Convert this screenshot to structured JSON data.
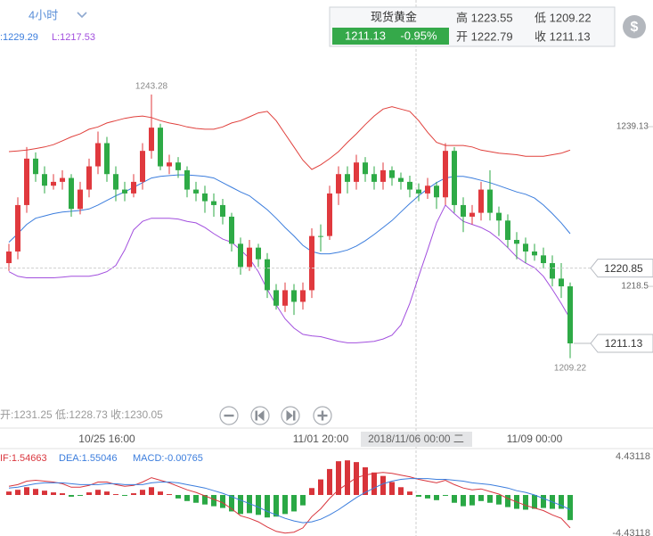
{
  "timeframe": "4小时",
  "boll_legend": [
    ":1229.29",
    "L:1217.53"
  ],
  "quote": {
    "title": "现货黄金",
    "price": "1211.13",
    "change": "-0.95%",
    "high": "高 1223.55",
    "low": "低 1209.22",
    "open": "开 1222.79",
    "close": "收 1211.13",
    "icon": "$"
  },
  "ohlc_readout": "开:1231.25 低:1228.73 收:1230.05",
  "crosshair_time": "2018/11/06 00:00 二",
  "macd_legend": [
    {
      "text": "IF:1.54663",
      "color": "#d9363e"
    },
    {
      "text": "DEA:1.55046",
      "color": "#3b7ddd"
    },
    {
      "text": "MACD:-0.00765",
      "color": "#3b7ddd"
    }
  ],
  "chart_data": [
    {
      "type": "candlestick",
      "categories": [
        null,
        null,
        null,
        null,
        null,
        null,
        null,
        null,
        null,
        null,
        null,
        "10/25 16:00",
        null,
        null,
        null,
        null,
        null,
        null,
        null,
        null,
        null,
        null,
        null,
        null,
        null,
        null,
        null,
        null,
        null,
        null,
        null,
        null,
        null,
        null,
        null,
        "11/01 20:00",
        null,
        null,
        null,
        null,
        null,
        null,
        null,
        null,
        null,
        null,
        null,
        null,
        null,
        null,
        null,
        null,
        null,
        null,
        null,
        null,
        null,
        null,
        null,
        "11/09 00:00",
        null,
        null,
        null,
        null
      ],
      "up_color": "#e0393e",
      "down_color": "#2eaa46",
      "candles": {
        "open": [
          1221.5,
          1223,
          1229,
          1235,
          1233,
          1231.5,
          1232,
          1232.5,
          1228.5,
          1231,
          1234,
          1237,
          1233,
          1231,
          1230.5,
          1232,
          1236,
          1239,
          1234,
          1234.5,
          1233.5,
          1231,
          1230.5,
          1229.5,
          1229,
          1227.5,
          1224,
          1221,
          1223.5,
          1222,
          1218,
          1216,
          1218,
          1216.5,
          1218,
          1225,
          1225,
          1230.5,
          1233,
          1232,
          1234.5,
          1233,
          1232,
          1233.5,
          1232.5,
          1232,
          1231,
          1230.5,
          1231.5,
          1230,
          1236,
          1229,
          1227.5,
          1228,
          1231,
          1228,
          1227,
          1224.5,
          1224,
          1223,
          1222.5,
          1221.5,
          1219.5,
          1218.5
        ],
        "high": [
          1224,
          1230,
          1236.5,
          1235.8,
          1234,
          1233,
          1233.5,
          1233,
          1232,
          1235,
          1238.5,
          1237.8,
          1234,
          1232,
          1233,
          1237,
          1243.28,
          1239.5,
          1235.5,
          1235.2,
          1234,
          1232,
          1231.5,
          1230.5,
          1229.8,
          1228,
          1224.8,
          1224.5,
          1224,
          1222.8,
          1218.8,
          1219,
          1218.8,
          1219,
          1226,
          1226.5,
          1231.5,
          1234,
          1234,
          1235.5,
          1235.2,
          1234,
          1234.5,
          1234,
          1233.2,
          1232.8,
          1231.8,
          1232.5,
          1232,
          1237,
          1236.5,
          1230,
          1229,
          1232,
          1233.5,
          1228.8,
          1227.8,
          1225.5,
          1224.8,
          1224,
          1223.5,
          1222.5,
          1221.5,
          1219
        ],
        "low": [
          1220.5,
          1222,
          1228,
          1232,
          1230.5,
          1231,
          1231,
          1227.5,
          1227.8,
          1230,
          1233,
          1232,
          1229.5,
          1229.5,
          1230,
          1231,
          1235,
          1233.5,
          1233,
          1232.5,
          1230,
          1229.5,
          1228,
          1227.5,
          1226.5,
          1223,
          1220,
          1220.5,
          1221,
          1217,
          1215.5,
          1215.2,
          1214.8,
          1215.5,
          1217,
          1223,
          1224.5,
          1229,
          1230.5,
          1231,
          1232,
          1231,
          1231,
          1231.5,
          1231,
          1230,
          1229.5,
          1229.8,
          1228.5,
          1229,
          1228,
          1225.5,
          1226.5,
          1227,
          1227,
          1225,
          1223.5,
          1222,
          1221.5,
          1221.8,
          1220.8,
          1218.5,
          1217,
          1209.22
        ],
        "close": [
          1223,
          1229,
          1235,
          1233,
          1231.5,
          1232,
          1232.5,
          1228.5,
          1231,
          1234,
          1237,
          1233,
          1231,
          1230.5,
          1232,
          1236,
          1239,
          1234,
          1234.5,
          1233.5,
          1231,
          1230.5,
          1229.5,
          1229,
          1227.5,
          1224,
          1221,
          1223.5,
          1222,
          1218,
          1216,
          1218,
          1216.5,
          1218,
          1225,
          1225,
          1230.5,
          1233,
          1232,
          1234.5,
          1233,
          1232,
          1233.5,
          1232.5,
          1232,
          1231,
          1230.5,
          1231.5,
          1230,
          1236,
          1229,
          1227.5,
          1228,
          1231,
          1228,
          1227,
          1224.5,
          1224,
          1223,
          1222.5,
          1221.5,
          1219.5,
          1218.5,
          1211.13
        ]
      },
      "bands": [
        {
          "color": "#e0403c",
          "values": [
            1235.9,
            1236.0,
            1236.1,
            1236.3,
            1236.5,
            1236.8,
            1237.3,
            1237.8,
            1238.2,
            1238.8,
            1239.1,
            1239.6,
            1239.9,
            1240.2,
            1240.4,
            1240.5,
            1240.3,
            1239.9,
            1239.6,
            1239.4,
            1239.1,
            1238.9,
            1238.8,
            1238.8,
            1239.1,
            1239.6,
            1239.9,
            1240.4,
            1240.9,
            1241.1,
            1239.9,
            1238.2,
            1236.5,
            1234.8,
            1233.6,
            1234.2,
            1235.0,
            1235.9,
            1237.1,
            1238.2,
            1239.4,
            1240.5,
            1241.4,
            1241.7,
            1241.4,
            1241.1,
            1239.9,
            1238.4,
            1237.1,
            1236.7,
            1236.7,
            1236.7,
            1236.5,
            1236.1,
            1235.9,
            1235.7,
            1235.6,
            1235.5,
            1235.3,
            1235.3,
            1235.3,
            1235.5,
            1235.7,
            1236.1
          ]
        },
        {
          "color": "#3b7ddd",
          "values": [
            1224.2,
            1225.3,
            1226.5,
            1227.3,
            1227.6,
            1227.9,
            1228.1,
            1228.2,
            1228.3,
            1228.5,
            1229.0,
            1229.6,
            1230.2,
            1230.7,
            1231.3,
            1231.9,
            1232.5,
            1232.7,
            1232.8,
            1232.9,
            1232.9,
            1232.8,
            1232.7,
            1232.5,
            1231.9,
            1231.3,
            1230.7,
            1230.2,
            1229.3,
            1228.4,
            1227.3,
            1226.1,
            1225.0,
            1223.8,
            1223.0,
            1222.7,
            1222.7,
            1222.9,
            1223.2,
            1223.7,
            1224.4,
            1225.2,
            1226.1,
            1227.0,
            1228.1,
            1229.2,
            1230.2,
            1231.1,
            1231.9,
            1232.5,
            1232.7,
            1232.7,
            1232.5,
            1232.2,
            1231.9,
            1231.5,
            1231.1,
            1230.7,
            1230.4,
            1229.9,
            1229.0,
            1227.9,
            1226.7,
            1225.3
          ]
        },
        {
          "color": "#a24fde",
          "values": [
            1220.4,
            1219.8,
            1219.6,
            1219.6,
            1219.6,
            1219.6,
            1219.7,
            1219.8,
            1219.8,
            1219.8,
            1220.0,
            1220.4,
            1221.2,
            1223.2,
            1225.8,
            1226.9,
            1227.3,
            1227.3,
            1227.3,
            1227.2,
            1226.9,
            1226.7,
            1226.1,
            1225.3,
            1224.6,
            1224.2,
            1223.2,
            1222.1,
            1220.4,
            1218.1,
            1216.1,
            1214.3,
            1213.1,
            1212.3,
            1212.1,
            1212.0,
            1211.7,
            1211.4,
            1211.2,
            1211.2,
            1211.3,
            1211.4,
            1211.7,
            1212.2,
            1213.5,
            1216.3,
            1219.8,
            1223.2,
            1226.7,
            1229.0,
            1227.9,
            1226.9,
            1226.5,
            1226.1,
            1225.5,
            1224.6,
            1223.5,
            1222.3,
            1221.5,
            1220.9,
            1219.8,
            1218.1,
            1216.3,
            1214.3
          ]
        }
      ],
      "ylim": [
        1200.42,
        1255.49
      ],
      "yticks": [
        1239.13,
        1218.5
      ],
      "crosshair_price": 1220.85,
      "last_price": 1211.13
    },
    {
      "type": "macd",
      "pos_color": "#d8343a",
      "neg_color": "#2aa845",
      "histogram": [
        0.4,
        0.6,
        0.9,
        0.7,
        0.5,
        0.3,
        0.2,
        -0.2,
        -0.1,
        0.3,
        0.6,
        0.4,
        0.1,
        -0.1,
        0.2,
        0.6,
        0.9,
        0.4,
        0.1,
        -0.4,
        -0.7,
        -0.9,
        -1.1,
        -1.3,
        -1.5,
        -1.9,
        -2.2,
        -2.1,
        -2.3,
        -2.6,
        -2.5,
        -2.2,
        -1.9,
        -1.2,
        0.8,
        1.8,
        3.0,
        3.9,
        4.0,
        3.8,
        3.2,
        2.6,
        2.2,
        1.5,
        0.9,
        0.4,
        -0.2,
        -0.4,
        -0.6,
        -0.1,
        -0.9,
        -1.3,
        -1.2,
        -0.7,
        -0.9,
        -1.1,
        -1.4,
        -1.6,
        -1.7,
        -1.6,
        -1.5,
        -1.6,
        -1.6,
        -2.9
      ],
      "lines": [
        {
          "color": "#d9363e",
          "values": [
            1.0,
            1.2,
            1.6,
            1.7,
            1.6,
            1.5,
            1.3,
            0.9,
            0.9,
            1.1,
            1.5,
            1.5,
            1.2,
            1.0,
            1.1,
            1.5,
            2.0,
            1.7,
            1.4,
            1.0,
            0.6,
            0.3,
            -0.1,
            -0.5,
            -0.9,
            -1.6,
            -2.4,
            -2.7,
            -3.1,
            -3.7,
            -4.2,
            -4.4,
            -4.3,
            -3.8,
            -2.5,
            -1.6,
            -0.4,
            0.6,
            1.3,
            2.0,
            2.3,
            2.5,
            2.6,
            2.5,
            2.3,
            2.1,
            1.8,
            1.6,
            1.4,
            1.7,
            1.2,
            0.8,
            0.6,
            0.7,
            0.4,
            0.1,
            -0.4,
            -0.8,
            -1.2,
            -1.5,
            -1.8,
            -2.3,
            -2.7,
            -3.8
          ]
        },
        {
          "color": "#3b7ddd",
          "values": [
            0.8,
            0.9,
            1.1,
            1.3,
            1.4,
            1.4,
            1.4,
            1.3,
            1.2,
            1.2,
            1.2,
            1.3,
            1.3,
            1.2,
            1.2,
            1.2,
            1.4,
            1.5,
            1.5,
            1.4,
            1.2,
            1.0,
            0.8,
            0.5,
            0.2,
            -0.2,
            -0.6,
            -1.0,
            -1.4,
            -1.9,
            -2.3,
            -2.7,
            -3.0,
            -3.2,
            -3.1,
            -2.8,
            -2.3,
            -1.7,
            -1.0,
            -0.3,
            0.3,
            0.8,
            1.3,
            1.6,
            1.8,
            1.9,
            1.9,
            1.9,
            1.8,
            1.8,
            1.7,
            1.6,
            1.4,
            1.3,
            1.2,
            1.0,
            0.8,
            0.5,
            0.3,
            0.0,
            -0.4,
            -0.8,
            -1.2,
            -1.7
          ]
        }
      ],
      "ylim": [
        -4.74,
        5.36
      ],
      "yticks": [
        4.43118,
        -4.43118
      ]
    }
  ]
}
